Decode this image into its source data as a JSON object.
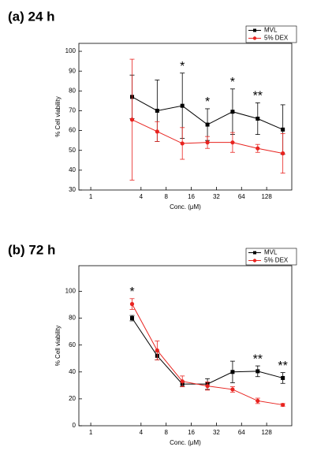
{
  "chart_data": [
    {
      "type": "line",
      "title": "(a) 24 h",
      "x_label": "Conc. (μM)",
      "y_label": "% Cell viability",
      "x": [
        3.125,
        6.25,
        12.5,
        25,
        50,
        100,
        200
      ],
      "log_x": true,
      "log_base": 2,
      "xlim": [
        0.72,
        256
      ],
      "xticks": [
        1,
        4,
        8,
        16,
        32,
        64,
        128
      ],
      "ylim": [
        30,
        104
      ],
      "yticks": [
        30,
        40,
        50,
        60,
        70,
        80,
        90,
        100
      ],
      "legend": "upper right",
      "series": [
        {
          "name": "MVL",
          "color": "#000000",
          "marker": "square",
          "values": [
            77,
            70,
            72.5,
            63,
            69.5,
            66,
            60.5
          ],
          "errors": [
            11,
            15.5,
            16.5,
            8,
            11.5,
            8,
            12.5
          ]
        },
        {
          "name": "5% DEX",
          "color": "#e8231f",
          "marker": "circle",
          "values": [
            65.5,
            59.5,
            53.5,
            54,
            54,
            51,
            48.5
          ],
          "errors": [
            30.5,
            5,
            8,
            3,
            5,
            2,
            10
          ]
        }
      ],
      "annotations": [
        {
          "text": "*",
          "x": 12.5
        },
        {
          "text": "*",
          "x": 25
        },
        {
          "text": "*",
          "x": 50
        },
        {
          "text": "**",
          "x": 100
        }
      ]
    },
    {
      "type": "line",
      "title": "(b) 72 h",
      "x_label": "Conc. (μM)",
      "y_label": "% Cell viability",
      "x": [
        3.125,
        6.25,
        12.5,
        25,
        50,
        100,
        200
      ],
      "log_x": true,
      "log_base": 2,
      "xlim": [
        0.72,
        256
      ],
      "xticks": [
        1,
        4,
        8,
        16,
        32,
        64,
        128
      ],
      "ylim": [
        0,
        119
      ],
      "yticks": [
        0,
        20,
        40,
        60,
        80,
        100
      ],
      "legend": "upper right",
      "series": [
        {
          "name": "MVL",
          "color": "#000000",
          "marker": "square",
          "values": [
            80,
            52,
            31,
            31,
            40,
            40.5,
            35.5
          ],
          "errors": [
            2,
            3,
            2,
            4,
            8,
            4,
            4
          ]
        },
        {
          "name": "5% DEX",
          "color": "#e8231f",
          "marker": "circle",
          "values": [
            90.5,
            56,
            33,
            29.5,
            27,
            18.5,
            15.5
          ],
          "errors": [
            4,
            7,
            4,
            3,
            2,
            2,
            1
          ]
        }
      ],
      "annotations": [
        {
          "text": "*",
          "x": 3.125
        },
        {
          "text": "**",
          "x": 100
        },
        {
          "text": "**",
          "x": 200
        }
      ]
    }
  ]
}
